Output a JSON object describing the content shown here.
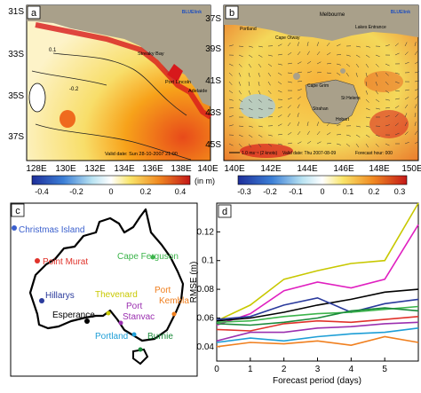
{
  "panel_a": {
    "label": "a",
    "brand": "BLUElink",
    "valid_date": "Valid date: Sun 28-10-2007 21:00",
    "lat_ticks": [
      "31S",
      "33S",
      "35S",
      "37S"
    ],
    "lon_ticks": [
      "128E",
      "130E",
      "132E",
      "134E",
      "136E",
      "138E",
      "140E"
    ],
    "places": [
      "Streaky Bay",
      "Port Lincoln",
      "Adelaide"
    ],
    "contours": [
      "0.1",
      "-0.2"
    ],
    "colorbar_ticks": [
      "-0.4",
      "-0.2",
      "0",
      "0.2",
      "0.4"
    ],
    "colorbar_unit": "(in m)"
  },
  "panel_b": {
    "label": "b",
    "brand": "BLUElink",
    "valid_date": "Valid date: Thu 2007-08-09",
    "forecast_hour": "Forecast hour: 000",
    "vector_scale": "1.0 ms⁻¹ (2 knots)",
    "lat_ticks": [
      "37S",
      "39S",
      "41S",
      "43S",
      "45S"
    ],
    "lon_ticks": [
      "140E",
      "142E",
      "144E",
      "146E",
      "148E",
      "150E"
    ],
    "places": [
      "Melbourne",
      "Portland",
      "Cape Otway",
      "Lakes Entrance",
      "Cape Grim",
      "St Helens",
      "Strahan",
      "Hobart"
    ],
    "colorbar_ticks": [
      "-0.3",
      "-0.2",
      "-0.1",
      "0",
      "0.1",
      "0.2",
      "0.3"
    ]
  },
  "panel_c": {
    "label": "c",
    "stations": [
      {
        "name": "Christmas Island",
        "color": "#3a5fcd"
      },
      {
        "name": "Point Murat",
        "color": "#e0322a"
      },
      {
        "name": "Cape Ferguson",
        "color": "#3cb44b"
      },
      {
        "name": "Hillarys",
        "color": "#2a3a9c"
      },
      {
        "name": "Thevenard",
        "color": "#c8c800"
      },
      {
        "name": "Port Kembla",
        "color": "#f07f1e"
      },
      {
        "name": "Esperance",
        "color": "#000000"
      },
      {
        "name": "Port Stanvac",
        "color": "#9b30b0"
      },
      {
        "name": "Portland",
        "color": "#1e9ed6"
      },
      {
        "name": "Burnie",
        "color": "#1a8a3a"
      }
    ]
  },
  "chart_data": {
    "type": "line",
    "panel_label": "d",
    "xlabel": "Forecast period (days)",
    "ylabel": "RMSE (m)",
    "xlim": [
      0,
      6
    ],
    "ylim": [
      0.03,
      0.14
    ],
    "xticks": [
      0,
      1,
      2,
      3,
      4,
      5
    ],
    "yticks": [
      0.04,
      0.06,
      0.08,
      0.1,
      0.12
    ],
    "x": [
      0,
      1,
      2,
      3,
      4,
      5,
      6
    ],
    "series": [
      {
        "color": "#c8c800",
        "values": [
          0.058,
          0.069,
          0.087,
          0.093,
          0.098,
          0.1,
          0.14
        ]
      },
      {
        "color": "#e020c0",
        "values": [
          0.055,
          0.063,
          0.079,
          0.085,
          0.081,
          0.087,
          0.125
        ]
      },
      {
        "color": "#000000",
        "values": [
          0.058,
          0.06,
          0.064,
          0.069,
          0.073,
          0.078,
          0.08
        ]
      },
      {
        "color": "#2a3a9c",
        "values": [
          0.059,
          0.061,
          0.069,
          0.074,
          0.064,
          0.07,
          0.073
        ]
      },
      {
        "color": "#3cb44b",
        "values": [
          0.057,
          0.058,
          0.061,
          0.063,
          0.064,
          0.066,
          0.068
        ]
      },
      {
        "color": "#1a8a3a",
        "values": [
          0.056,
          0.055,
          0.057,
          0.06,
          0.065,
          0.067,
          0.065
        ]
      },
      {
        "color": "#e0322a",
        "values": [
          0.052,
          0.051,
          0.056,
          0.058,
          0.057,
          0.059,
          0.061
        ]
      },
      {
        "color": "#9b30b0",
        "values": [
          0.044,
          0.05,
          0.05,
          0.053,
          0.054,
          0.056,
          0.057
        ]
      },
      {
        "color": "#1e9ed6",
        "values": [
          0.043,
          0.046,
          0.044,
          0.047,
          0.049,
          0.05,
          0.053
        ]
      },
      {
        "color": "#f07f1e",
        "values": [
          0.04,
          0.043,
          0.042,
          0.044,
          0.041,
          0.047,
          0.043
        ]
      }
    ]
  }
}
